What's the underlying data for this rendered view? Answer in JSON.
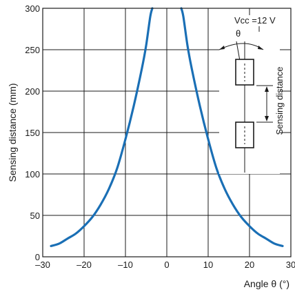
{
  "chart_data": {
    "type": "line",
    "title": "",
    "xlabel": "Angle θ (°)",
    "ylabel": "Sensing distance (mm)",
    "xlim": [
      -30,
      30
    ],
    "ylim": [
      0,
      300
    ],
    "x_ticks": [
      -30,
      -20,
      -10,
      0,
      10,
      20,
      30
    ],
    "x_tick_labels": [
      "–30",
      "–20",
      "–10",
      "0",
      "10",
      "20",
      "30"
    ],
    "y_ticks": [
      0,
      50,
      100,
      150,
      200,
      250,
      300
    ],
    "y_tick_labels": [
      "0",
      "50",
      "100",
      "150",
      "200",
      "250",
      "300"
    ],
    "grid": true,
    "series": [
      {
        "color": "#1a6fb5",
        "segments": [
          [
            [
              -28,
              13
            ],
            [
              -26,
              16
            ],
            [
              -24,
              22
            ],
            [
              -22,
              28
            ],
            [
              -20,
              37
            ],
            [
              -18,
              48
            ],
            [
              -16,
              63
            ],
            [
              -14,
              82
            ],
            [
              -12,
              107
            ],
            [
              -10,
              142
            ],
            [
              -8,
              182
            ],
            [
              -6,
              228
            ],
            [
              -5,
              255
            ],
            [
              -4,
              290
            ],
            [
              -3.5,
              300
            ]
          ],
          [
            [
              3.5,
              300
            ],
            [
              4,
              290
            ],
            [
              5,
              255
            ],
            [
              6,
              228
            ],
            [
              8,
              182
            ],
            [
              10,
              142
            ],
            [
              12,
              107
            ],
            [
              14,
              82
            ],
            [
              16,
              63
            ],
            [
              18,
              48
            ],
            [
              20,
              37
            ],
            [
              22,
              28
            ],
            [
              24,
              22
            ],
            [
              26,
              16
            ],
            [
              28,
              13
            ]
          ]
        ]
      }
    ],
    "annotations": {
      "vcc": "Vcc =12 V",
      "theta": "θ",
      "sensing_distance": "Sensing distance"
    }
  }
}
